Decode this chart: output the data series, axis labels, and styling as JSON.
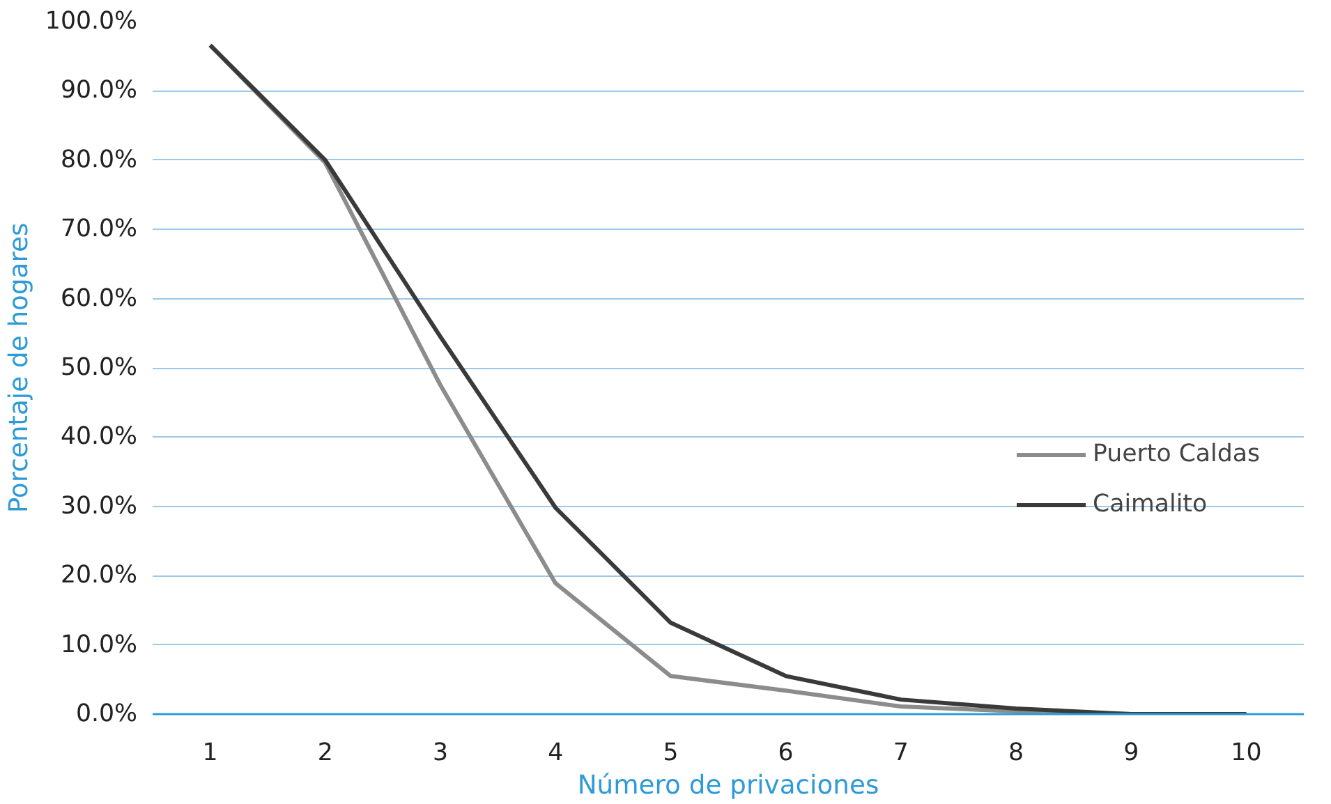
{
  "chart_data": {
    "type": "line",
    "xlabel": "Número de privaciones",
    "ylabel": "Porcentaje de hogares",
    "categories": [
      "1",
      "2",
      "3",
      "4",
      "5",
      "6",
      "7",
      "8",
      "9",
      "10"
    ],
    "series": [
      {
        "name": "Puerto Caldas",
        "color": "#8c8c8c",
        "values": [
          96.6,
          79.6,
          47.5,
          18.9,
          5.5,
          3.4,
          1.1,
          0.4,
          0,
          0
        ]
      },
      {
        "name": "Caimalito",
        "color": "#3a3a3a",
        "values": [
          96.6,
          80.0,
          54.5,
          29.8,
          13.2,
          5.5,
          2.1,
          0.8,
          0,
          0
        ]
      }
    ],
    "ylim": [
      0,
      100
    ],
    "yticks": [
      {
        "value": 0,
        "label": "0.0%"
      },
      {
        "value": 10,
        "label": "10.0%"
      },
      {
        "value": 20,
        "label": "20.0%"
      },
      {
        "value": 30,
        "label": "30.0%"
      },
      {
        "value": 40,
        "label": "40.0%"
      },
      {
        "value": 50,
        "label": "50.0%"
      },
      {
        "value": 60,
        "label": "60.0%"
      },
      {
        "value": 70,
        "label": "70.0%"
      },
      {
        "value": 80,
        "label": "80.0%"
      },
      {
        "value": 90,
        "label": "90.0%"
      },
      {
        "value": 100,
        "label": "100.0%"
      }
    ],
    "grid": "y",
    "legend": "right",
    "marker": "none",
    "line_style": "solid"
  }
}
